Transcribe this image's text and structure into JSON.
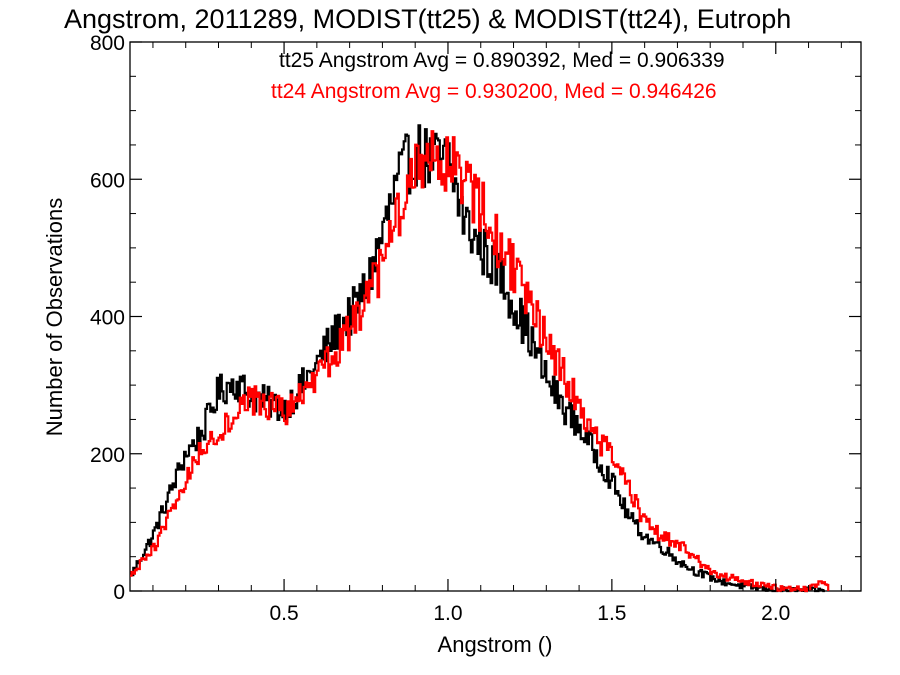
{
  "chart_data": {
    "type": "step-histogram",
    "title": "Angstrom, 2011289, MODIST(tt25) & MODIST(tt24), Eutroph",
    "xlabel": "Angstrom ()",
    "ylabel": "Number of Observations",
    "xlim": [
      0.03,
      2.26
    ],
    "ylim": [
      0,
      800
    ],
    "x_ticks": [
      {
        "value": 0.5,
        "label": "0.5"
      },
      {
        "value": 1.0,
        "label": "1.0"
      },
      {
        "value": 1.5,
        "label": "1.5"
      },
      {
        "value": 2.0,
        "label": "2.0"
      }
    ],
    "y_ticks": [
      {
        "value": 0,
        "label": "0"
      },
      {
        "value": 200,
        "label": "200"
      },
      {
        "value": 400,
        "label": "400"
      },
      {
        "value": 600,
        "label": "600"
      },
      {
        "value": 800,
        "label": "800"
      }
    ],
    "series": [
      {
        "name": "tt25",
        "legend": "tt25 Angstrom Avg = 0.890392, Med = 0.906339",
        "color": "#000000",
        "points": [
          [
            0.03,
            20
          ],
          [
            0.1,
            80
          ],
          [
            0.15,
            140
          ],
          [
            0.2,
            200
          ],
          [
            0.25,
            230
          ],
          [
            0.3,
            290
          ],
          [
            0.35,
            305
          ],
          [
            0.4,
            285
          ],
          [
            0.45,
            275
          ],
          [
            0.5,
            265
          ],
          [
            0.55,
            295
          ],
          [
            0.6,
            330
          ],
          [
            0.65,
            370
          ],
          [
            0.7,
            400
          ],
          [
            0.75,
            440
          ],
          [
            0.8,
            520
          ],
          [
            0.85,
            600
          ],
          [
            0.9,
            640
          ],
          [
            0.95,
            625
          ],
          [
            1.0,
            630
          ],
          [
            1.05,
            540
          ],
          [
            1.1,
            500
          ],
          [
            1.15,
            470
          ],
          [
            1.2,
            420
          ],
          [
            1.25,
            370
          ],
          [
            1.3,
            310
          ],
          [
            1.35,
            270
          ],
          [
            1.4,
            240
          ],
          [
            1.45,
            200
          ],
          [
            1.5,
            160
          ],
          [
            1.55,
            110
          ],
          [
            1.6,
            80
          ],
          [
            1.65,
            65
          ],
          [
            1.7,
            45
          ],
          [
            1.75,
            30
          ],
          [
            1.8,
            20
          ],
          [
            1.85,
            12
          ],
          [
            1.9,
            7
          ],
          [
            1.95,
            4
          ],
          [
            2.0,
            2
          ],
          [
            2.05,
            1
          ],
          [
            2.1,
            1
          ],
          [
            2.15,
            0
          ]
        ]
      },
      {
        "name": "tt24",
        "legend": "tt24 Angstrom Avg = 0.930200, Med = 0.946426",
        "color": "#ff0000",
        "points": [
          [
            0.03,
            20
          ],
          [
            0.1,
            60
          ],
          [
            0.15,
            110
          ],
          [
            0.2,
            160
          ],
          [
            0.25,
            210
          ],
          [
            0.3,
            230
          ],
          [
            0.35,
            260
          ],
          [
            0.4,
            280
          ],
          [
            0.45,
            270
          ],
          [
            0.5,
            262
          ],
          [
            0.55,
            280
          ],
          [
            0.6,
            305
          ],
          [
            0.65,
            345
          ],
          [
            0.7,
            380
          ],
          [
            0.75,
            420
          ],
          [
            0.8,
            470
          ],
          [
            0.85,
            550
          ],
          [
            0.9,
            610
          ],
          [
            0.95,
            650
          ],
          [
            1.0,
            625
          ],
          [
            1.05,
            600
          ],
          [
            1.1,
            560
          ],
          [
            1.15,
            510
          ],
          [
            1.2,
            470
          ],
          [
            1.25,
            410
          ],
          [
            1.3,
            370
          ],
          [
            1.35,
            320
          ],
          [
            1.4,
            270
          ],
          [
            1.45,
            225
          ],
          [
            1.5,
            200
          ],
          [
            1.55,
            150
          ],
          [
            1.6,
            100
          ],
          [
            1.65,
            80
          ],
          [
            1.7,
            70
          ],
          [
            1.75,
            50
          ],
          [
            1.8,
            30
          ],
          [
            1.85,
            20
          ],
          [
            1.9,
            15
          ],
          [
            1.95,
            10
          ],
          [
            2.0,
            5
          ],
          [
            2.05,
            3
          ],
          [
            2.1,
            2
          ],
          [
            2.15,
            15
          ],
          [
            2.16,
            2
          ]
        ]
      }
    ]
  }
}
